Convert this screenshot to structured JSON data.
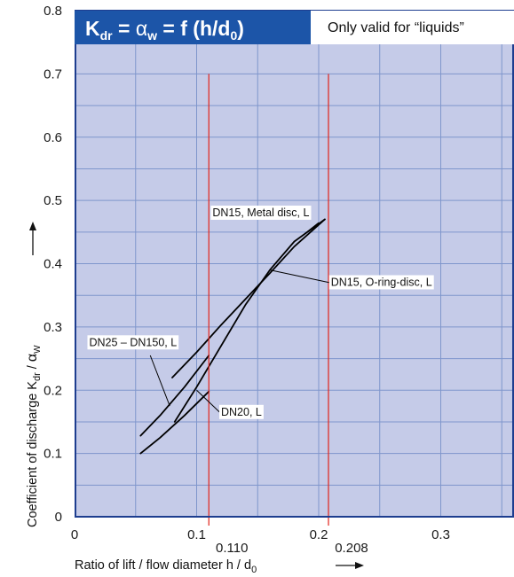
{
  "chart_data": {
    "type": "line",
    "title": {
      "K": "K",
      "dr": "dr",
      "eq1": " = ",
      "alpha": "α",
      "w": "w",
      "eq2": " = f (h/d",
      "zero": "0",
      "close": ")"
    },
    "note": "Only valid for “liquids”",
    "xlabel": "Ratio of lift / flow diameter h / d",
    "xlabel_sub": "0",
    "ylabel": {
      "main": "Coefficient of discharge K",
      "sub1": "dr",
      "mid": " / ",
      "alpha": "α",
      "sub2": "W"
    },
    "xlim": [
      0,
      0.36
    ],
    "ylim": [
      0,
      0.8
    ],
    "x_ticks": [
      {
        "value": 0,
        "label": "0"
      },
      {
        "value": 0.1,
        "label": "0.1"
      },
      {
        "value": 0.2,
        "label": "0.2"
      },
      {
        "value": 0.3,
        "label": "0.3"
      }
    ],
    "y_ticks": [
      {
        "value": 0,
        "label": "0"
      },
      {
        "value": 0.1,
        "label": "0.1"
      },
      {
        "value": 0.2,
        "label": "0.2"
      },
      {
        "value": 0.3,
        "label": "0.3"
      },
      {
        "value": 0.4,
        "label": "0.4"
      },
      {
        "value": 0.5,
        "label": "0.5"
      },
      {
        "value": 0.6,
        "label": "0.6"
      },
      {
        "value": 0.7,
        "label": "0.7"
      },
      {
        "value": 0.8,
        "label": "0.8"
      }
    ],
    "grid": true,
    "x_minor_step": 0.05,
    "reference_lines": [
      {
        "x": 0.11,
        "y_top": 0.7,
        "label": "0.110"
      },
      {
        "x": 0.208,
        "y_top": 0.7,
        "label": "0.208"
      }
    ],
    "series": [
      {
        "name": "DN15, Metal disc, L",
        "points": [
          [
            0.08,
            0.22
          ],
          [
            0.1,
            0.26
          ],
          [
            0.12,
            0.303
          ],
          [
            0.14,
            0.344
          ],
          [
            0.16,
            0.385
          ],
          [
            0.18,
            0.427
          ],
          [
            0.205,
            0.47
          ]
        ]
      },
      {
        "name": "DN15, O-ring-disc, L",
        "points": [
          [
            0.082,
            0.15
          ],
          [
            0.1,
            0.205
          ],
          [
            0.12,
            0.27
          ],
          [
            0.14,
            0.335
          ],
          [
            0.16,
            0.39
          ],
          [
            0.18,
            0.435
          ],
          [
            0.205,
            0.47
          ]
        ]
      },
      {
        "name": "DN25 – DN150, L",
        "points": [
          [
            0.054,
            0.128
          ],
          [
            0.07,
            0.16
          ],
          [
            0.09,
            0.205
          ],
          [
            0.11,
            0.255
          ]
        ]
      },
      {
        "name": "DN20, L",
        "points": [
          [
            0.054,
            0.1
          ],
          [
            0.07,
            0.125
          ],
          [
            0.09,
            0.16
          ],
          [
            0.11,
            0.198
          ]
        ]
      }
    ],
    "annotations": [
      {
        "text": "DN15, Metal disc, L",
        "text_x": 0.113,
        "text_y": 0.475,
        "anchor": "start",
        "leader": [
          [
            0.185,
            0.442
          ],
          [
            0.2,
            0.465
          ]
        ]
      },
      {
        "text": "DN15, O-ring-disc, L",
        "text_x": 0.21,
        "text_y": 0.365,
        "anchor": "start",
        "leader": [
          [
            0.16,
            0.39
          ],
          [
            0.209,
            0.37
          ]
        ]
      },
      {
        "text": "DN25 – DN150, L",
        "text_x": 0.012,
        "text_y": 0.27,
        "anchor": "start",
        "leader": [
          [
            0.062,
            0.255
          ],
          [
            0.078,
            0.175
          ]
        ]
      },
      {
        "text": "DN20, L",
        "text_x": 0.12,
        "text_y": 0.16,
        "anchor": "start",
        "leader": [
          [
            0.1,
            0.2
          ],
          [
            0.119,
            0.165
          ]
        ]
      }
    ],
    "colors": {
      "plot_bg": "#c5cbe8",
      "grid": "#7f96cc",
      "frame": "#1d3d8f",
      "title_bg": "#1c55a8",
      "ref_line": "#e2231a",
      "curve": "#000000"
    }
  }
}
